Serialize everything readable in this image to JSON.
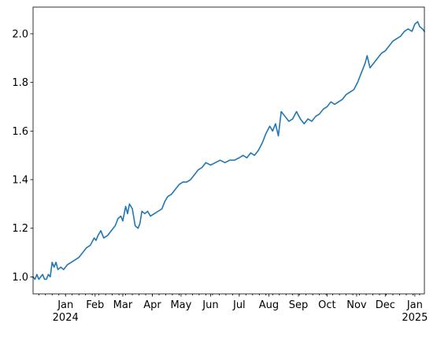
{
  "chart_data": {
    "type": "line",
    "title": "",
    "xlabel": "",
    "ylabel": "",
    "grid": false,
    "legend": "none",
    "xlim": [
      "2023-11-28",
      "2025-01-11"
    ],
    "ylim": [
      0.93,
      2.11
    ],
    "x_ticks": [
      {
        "date": "2024-01-01",
        "label": "Jan",
        "sublabel": "2024"
      },
      {
        "date": "2024-02-01",
        "label": "Feb",
        "sublabel": ""
      },
      {
        "date": "2024-03-01",
        "label": "Mar",
        "sublabel": ""
      },
      {
        "date": "2024-04-01",
        "label": "Apr",
        "sublabel": ""
      },
      {
        "date": "2024-05-01",
        "label": "May",
        "sublabel": ""
      },
      {
        "date": "2024-06-01",
        "label": "Jun",
        "sublabel": ""
      },
      {
        "date": "2024-07-01",
        "label": "Jul",
        "sublabel": ""
      },
      {
        "date": "2024-08-01",
        "label": "Aug",
        "sublabel": ""
      },
      {
        "date": "2024-09-01",
        "label": "Sep",
        "sublabel": ""
      },
      {
        "date": "2024-10-01",
        "label": "Oct",
        "sublabel": ""
      },
      {
        "date": "2024-11-01",
        "label": "Nov",
        "sublabel": ""
      },
      {
        "date": "2024-12-01",
        "label": "Dec",
        "sublabel": ""
      },
      {
        "date": "2025-01-01",
        "label": "Jan",
        "sublabel": "2025"
      }
    ],
    "y_ticks": [
      1.0,
      1.2,
      1.4,
      1.6,
      1.8,
      2.0
    ],
    "y_tick_labels": [
      "1.0",
      "1.2",
      "1.4",
      "1.6",
      "1.8",
      "2.0"
    ],
    "series": [
      {
        "color": "#1f77b4",
        "points": [
          [
            "2023-11-28",
            1.0
          ],
          [
            "2023-11-30",
            0.99
          ],
          [
            "2023-12-02",
            1.01
          ],
          [
            "2023-12-04",
            0.99
          ],
          [
            "2023-12-06",
            1.0
          ],
          [
            "2023-12-08",
            1.01
          ],
          [
            "2023-12-10",
            0.99
          ],
          [
            "2023-12-12",
            0.99
          ],
          [
            "2023-12-14",
            1.01
          ],
          [
            "2023-12-16",
            1.0
          ],
          [
            "2023-12-18",
            1.06
          ],
          [
            "2023-12-20",
            1.04
          ],
          [
            "2023-12-22",
            1.06
          ],
          [
            "2023-12-24",
            1.03
          ],
          [
            "2023-12-27",
            1.04
          ],
          [
            "2023-12-30",
            1.03
          ],
          [
            "2024-01-03",
            1.05
          ],
          [
            "2024-01-07",
            1.06
          ],
          [
            "2024-01-11",
            1.07
          ],
          [
            "2024-01-15",
            1.08
          ],
          [
            "2024-01-19",
            1.1
          ],
          [
            "2024-01-23",
            1.12
          ],
          [
            "2024-01-27",
            1.13
          ],
          [
            "2024-01-31",
            1.16
          ],
          [
            "2024-02-02",
            1.15
          ],
          [
            "2024-02-04",
            1.17
          ],
          [
            "2024-02-07",
            1.19
          ],
          [
            "2024-02-10",
            1.16
          ],
          [
            "2024-02-14",
            1.17
          ],
          [
            "2024-02-18",
            1.19
          ],
          [
            "2024-02-22",
            1.21
          ],
          [
            "2024-02-25",
            1.24
          ],
          [
            "2024-02-28",
            1.25
          ],
          [
            "2024-03-01",
            1.23
          ],
          [
            "2024-03-04",
            1.29
          ],
          [
            "2024-03-06",
            1.26
          ],
          [
            "2024-03-08",
            1.3
          ],
          [
            "2024-03-11",
            1.28
          ],
          [
            "2024-03-14",
            1.21
          ],
          [
            "2024-03-17",
            1.2
          ],
          [
            "2024-03-19",
            1.22
          ],
          [
            "2024-03-21",
            1.27
          ],
          [
            "2024-03-24",
            1.26
          ],
          [
            "2024-03-27",
            1.27
          ],
          [
            "2024-03-30",
            1.25
          ],
          [
            "2024-04-03",
            1.26
          ],
          [
            "2024-04-07",
            1.27
          ],
          [
            "2024-04-11",
            1.28
          ],
          [
            "2024-04-14",
            1.31
          ],
          [
            "2024-04-17",
            1.33
          ],
          [
            "2024-04-21",
            1.34
          ],
          [
            "2024-04-25",
            1.36
          ],
          [
            "2024-04-29",
            1.38
          ],
          [
            "2024-05-03",
            1.39
          ],
          [
            "2024-05-07",
            1.39
          ],
          [
            "2024-05-11",
            1.4
          ],
          [
            "2024-05-15",
            1.42
          ],
          [
            "2024-05-19",
            1.44
          ],
          [
            "2024-05-23",
            1.45
          ],
          [
            "2024-05-27",
            1.47
          ],
          [
            "2024-06-01",
            1.46
          ],
          [
            "2024-06-06",
            1.47
          ],
          [
            "2024-06-11",
            1.48
          ],
          [
            "2024-06-16",
            1.47
          ],
          [
            "2024-06-21",
            1.48
          ],
          [
            "2024-06-26",
            1.48
          ],
          [
            "2024-07-01",
            1.49
          ],
          [
            "2024-07-05",
            1.5
          ],
          [
            "2024-07-09",
            1.49
          ],
          [
            "2024-07-13",
            1.51
          ],
          [
            "2024-07-17",
            1.5
          ],
          [
            "2024-07-21",
            1.52
          ],
          [
            "2024-07-25",
            1.55
          ],
          [
            "2024-07-29",
            1.59
          ],
          [
            "2024-08-02",
            1.62
          ],
          [
            "2024-08-05",
            1.6
          ],
          [
            "2024-08-08",
            1.63
          ],
          [
            "2024-08-11",
            1.58
          ],
          [
            "2024-08-14",
            1.68
          ],
          [
            "2024-08-18",
            1.66
          ],
          [
            "2024-08-22",
            1.64
          ],
          [
            "2024-08-26",
            1.65
          ],
          [
            "2024-08-30",
            1.68
          ],
          [
            "2024-09-03",
            1.65
          ],
          [
            "2024-09-07",
            1.63
          ],
          [
            "2024-09-11",
            1.65
          ],
          [
            "2024-09-15",
            1.64
          ],
          [
            "2024-09-19",
            1.66
          ],
          [
            "2024-09-23",
            1.67
          ],
          [
            "2024-09-27",
            1.69
          ],
          [
            "2024-10-01",
            1.7
          ],
          [
            "2024-10-05",
            1.72
          ],
          [
            "2024-10-09",
            1.71
          ],
          [
            "2024-10-13",
            1.72
          ],
          [
            "2024-10-17",
            1.73
          ],
          [
            "2024-10-21",
            1.75
          ],
          [
            "2024-10-25",
            1.76
          ],
          [
            "2024-10-29",
            1.77
          ],
          [
            "2024-11-02",
            1.8
          ],
          [
            "2024-11-06",
            1.84
          ],
          [
            "2024-11-10",
            1.88
          ],
          [
            "2024-11-12",
            1.91
          ],
          [
            "2024-11-15",
            1.86
          ],
          [
            "2024-11-19",
            1.88
          ],
          [
            "2024-11-23",
            1.9
          ],
          [
            "2024-11-27",
            1.92
          ],
          [
            "2024-12-01",
            1.93
          ],
          [
            "2024-12-05",
            1.95
          ],
          [
            "2024-12-09",
            1.97
          ],
          [
            "2024-12-13",
            1.98
          ],
          [
            "2024-12-17",
            1.99
          ],
          [
            "2024-12-21",
            2.01
          ],
          [
            "2024-12-25",
            2.02
          ],
          [
            "2024-12-29",
            2.01
          ],
          [
            "2025-01-01",
            2.04
          ],
          [
            "2025-01-04",
            2.05
          ],
          [
            "2025-01-06",
            2.03
          ],
          [
            "2025-01-09",
            2.02
          ],
          [
            "2025-01-11",
            2.01
          ]
        ]
      }
    ]
  }
}
